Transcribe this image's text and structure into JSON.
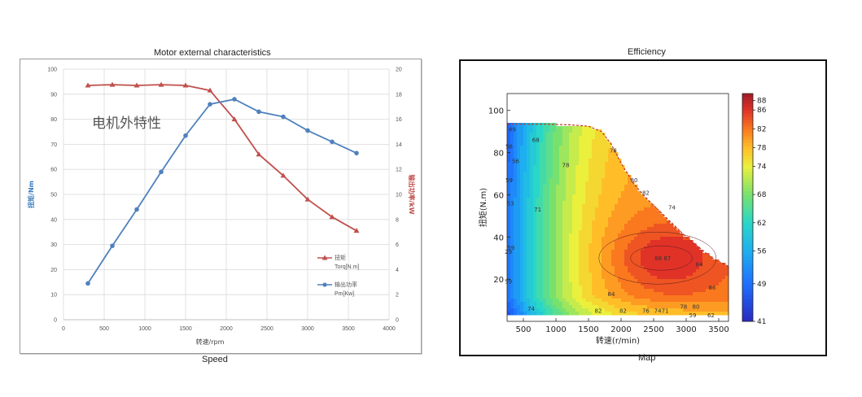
{
  "left_title": "Motor external characteristics",
  "left_caption": "Speed",
  "right_title": "Efficiency",
  "right_caption": "Map",
  "colors": {
    "torque": "#c0504d",
    "power": "#4f81bd",
    "left_axis_label": "#3b7bbf",
    "right_axis_label": "#c0504d"
  },
  "chart_data": [
    {
      "type": "line",
      "annotation": "电机外特性",
      "xlabel": "转速/rpm",
      "ylabel": "扭矩/Nm",
      "y2label": "输出功率/kW",
      "xlim": [
        0,
        4000
      ],
      "ylim": [
        0,
        100
      ],
      "y2lim": [
        0,
        20
      ],
      "xticks": [
        0,
        500,
        1000,
        1500,
        2000,
        2500,
        3000,
        3500,
        4000
      ],
      "yticks": [
        0,
        10,
        20,
        30,
        40,
        50,
        60,
        70,
        80,
        90,
        100
      ],
      "y2ticks": [
        0,
        2,
        4,
        6,
        8,
        10,
        12,
        14,
        16,
        18,
        20
      ],
      "grid": true,
      "legend_position": "lower-right",
      "series": [
        {
          "name": "扭矩",
          "name2": "Torq[N.m]",
          "axis": "left",
          "marker": "triangle",
          "x": [
            300,
            600,
            900,
            1200,
            1500,
            1800,
            2100,
            2400,
            2700,
            3000,
            3300,
            3600
          ],
          "y": [
            93.5,
            93.8,
            93.5,
            93.8,
            93.5,
            91.5,
            80,
            66,
            57.5,
            48,
            41,
            35.5
          ]
        },
        {
          "name": "输出功率",
          "name2": "Pm[Kw]",
          "axis": "right",
          "marker": "circle",
          "x": [
            300,
            600,
            900,
            1200,
            1500,
            1800,
            2100,
            2400,
            2700,
            3000,
            3300,
            3600
          ],
          "y": [
            2.9,
            5.9,
            8.8,
            11.8,
            14.7,
            17.2,
            17.6,
            16.6,
            16.2,
            15.1,
            14.2,
            13.3
          ]
        }
      ]
    },
    {
      "type": "heatmap",
      "subtype": "contour",
      "xlabel": "转速(r/min)",
      "ylabel": "扭矩(N.m)",
      "xlim": [
        250,
        3650
      ],
      "ylim": [
        0,
        108
      ],
      "xticks": [
        500,
        1000,
        1500,
        2000,
        2500,
        3000,
        3500
      ],
      "yticks": [
        20,
        40,
        60,
        80,
        100
      ],
      "colorbar_ticks": [
        41,
        49,
        56,
        62,
        68,
        74,
        78,
        82,
        86,
        88
      ],
      "colorbar_range": [
        41,
        89.5
      ],
      "peak_efficiency": 88,
      "peak_location": [
        2600,
        30
      ],
      "boundary": {
        "x": [
          250,
          800,
          1200,
          1500,
          1700,
          1850,
          2000,
          2200,
          2400,
          2600,
          2800,
          3000,
          3200,
          3400,
          3650
        ],
        "y": [
          93.5,
          93.5,
          93.2,
          92.5,
          90,
          84,
          75,
          65,
          58,
          52,
          46,
          40,
          35,
          30,
          26
        ]
      },
      "contour_labels": [
        {
          "text": "56",
          "x": 280,
          "y": 82
        },
        {
          "text": "59",
          "x": 280,
          "y": 66
        },
        {
          "text": "49",
          "x": 330,
          "y": 90
        },
        {
          "text": "56",
          "x": 380,
          "y": 75
        },
        {
          "text": "53",
          "x": 300,
          "y": 55
        },
        {
          "text": "59",
          "x": 310,
          "y": 34
        },
        {
          "text": "29",
          "x": 270,
          "y": 32
        },
        {
          "text": "59",
          "x": 270,
          "y": 18
        },
        {
          "text": "68",
          "x": 690,
          "y": 85
        },
        {
          "text": "71",
          "x": 720,
          "y": 52
        },
        {
          "text": "78",
          "x": 1150,
          "y": 73
        },
        {
          "text": "74",
          "x": 620,
          "y": 5
        },
        {
          "text": "82",
          "x": 1650,
          "y": 4
        },
        {
          "text": "82",
          "x": 2030,
          "y": 4
        },
        {
          "text": "76",
          "x": 2380,
          "y": 4
        },
        {
          "text": "7471",
          "x": 2620,
          "y": 4
        },
        {
          "text": "78",
          "x": 2960,
          "y": 6
        },
        {
          "text": "80",
          "x": 3150,
          "y": 6
        },
        {
          "text": "59",
          "x": 3100,
          "y": 2
        },
        {
          "text": "62",
          "x": 3380,
          "y": 2
        },
        {
          "text": "78",
          "x": 1880,
          "y": 80
        },
        {
          "text": "80",
          "x": 2200,
          "y": 66
        },
        {
          "text": "82",
          "x": 2380,
          "y": 60
        },
        {
          "text": "74",
          "x": 2780,
          "y": 53
        },
        {
          "text": "84",
          "x": 3200,
          "y": 26
        },
        {
          "text": "86",
          "x": 3400,
          "y": 15
        },
        {
          "text": "88",
          "x": 2570,
          "y": 29
        },
        {
          "text": "87",
          "x": 2710,
          "y": 29
        },
        {
          "text": "84",
          "x": 1850,
          "y": 12
        }
      ]
    }
  ]
}
